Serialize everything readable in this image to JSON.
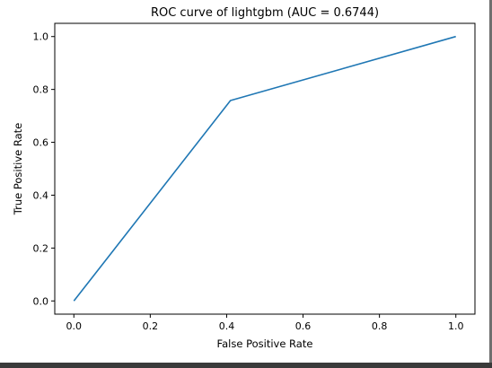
{
  "chart_data": {
    "type": "line",
    "title": "ROC curve of lightgbm (AUC = 0.6744)",
    "xlabel": "False Positive Rate",
    "ylabel": "True Positive Rate",
    "xlim": [
      -0.05,
      1.05
    ],
    "ylim": [
      -0.05,
      1.05
    ],
    "xticks": [
      0.0,
      0.2,
      0.4,
      0.6,
      0.8,
      1.0
    ],
    "yticks": [
      0.0,
      0.2,
      0.4,
      0.6,
      0.8,
      1.0
    ],
    "xtick_labels": [
      "0.0",
      "0.2",
      "0.4",
      "0.6",
      "0.8",
      "1.0"
    ],
    "ytick_labels": [
      "0.0",
      "0.2",
      "0.4",
      "0.6",
      "0.8",
      "1.0"
    ],
    "grid": false,
    "series": [
      {
        "color": "#1f77b4",
        "x": [
          0.0,
          0.41,
          1.0
        ],
        "y": [
          0.0,
          0.758,
          1.0
        ]
      }
    ]
  }
}
